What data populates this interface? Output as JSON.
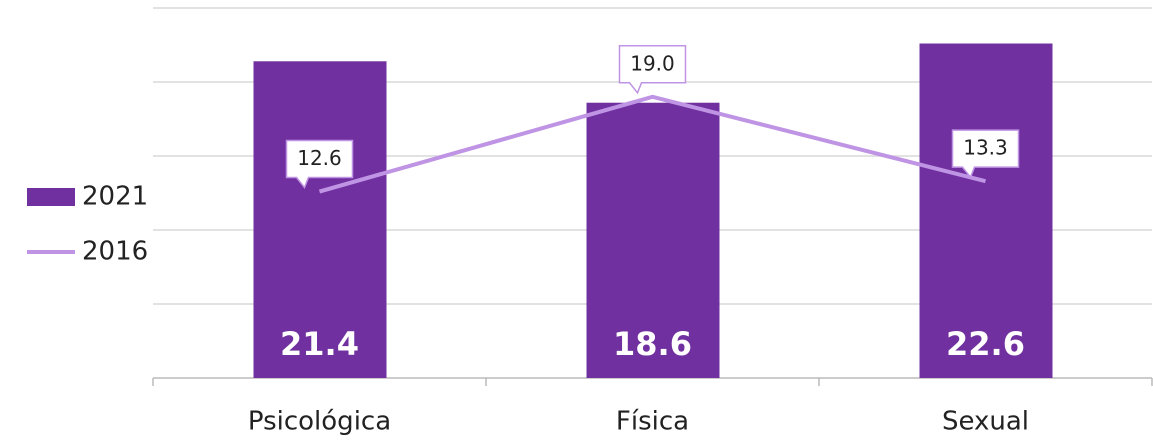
{
  "chart_data": {
    "type": "bar_line",
    "categories": [
      "Psicológica",
      "Física",
      "Sexual"
    ],
    "series": [
      {
        "name": "2021",
        "type": "bar",
        "color": "#7030a0",
        "values": [
          21.4,
          18.6,
          22.6
        ]
      },
      {
        "name": "2016",
        "type": "line",
        "color": "#bf94e4",
        "values": [
          12.6,
          19.0,
          13.3
        ],
        "value_labels": [
          "12.6",
          "19.0",
          "13.3"
        ]
      }
    ],
    "ylim": [
      0,
      25
    ],
    "yticks": [
      0,
      5,
      10,
      15,
      20,
      25
    ],
    "grid": true,
    "legend": "left"
  }
}
